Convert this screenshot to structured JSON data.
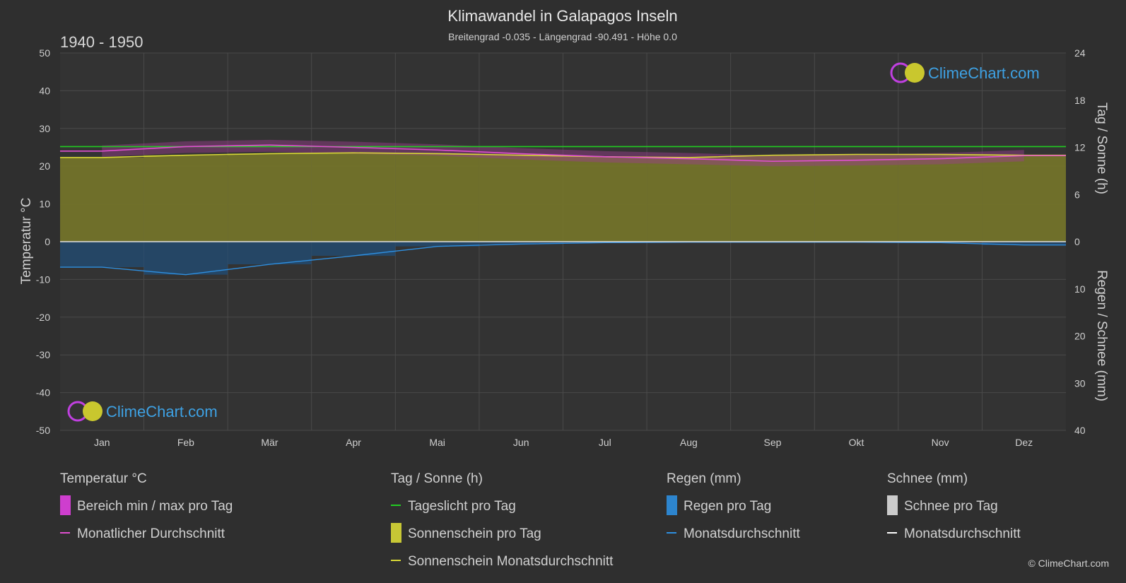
{
  "chart_data": {
    "type": "area",
    "title": "Klimawandel in Galapagos Inseln",
    "subtitle": "Breitengrad -0.035 - Längengrad -90.491 - Höhe 0.0",
    "period": "1940 - 1950",
    "months": [
      "Jan",
      "Feb",
      "Mär",
      "Apr",
      "Mai",
      "Jun",
      "Jul",
      "Aug",
      "Sep",
      "Okt",
      "Nov",
      "Dez"
    ],
    "y_left": {
      "label": "Temperatur °C",
      "min": -50,
      "max": 50,
      "ticks": [
        50,
        40,
        30,
        20,
        10,
        0,
        -10,
        -20,
        -30,
        -40,
        -50
      ]
    },
    "y_right_top": {
      "label": "Tag / Sonne (h)",
      "min": 0,
      "max": 24,
      "ticks": [
        24,
        18,
        12,
        6,
        0
      ]
    },
    "y_right_bottom": {
      "label": "Regen / Schnee (mm)",
      "min": 0,
      "max": 40,
      "ticks": [
        0,
        10,
        20,
        30,
        40
      ]
    },
    "series": [
      {
        "name": "Tageslicht pro Tag",
        "unit": "h",
        "color": "#22cc22",
        "values": [
          12.1,
          12.1,
          12.1,
          12.1,
          12.1,
          12.1,
          12.1,
          12.1,
          12.1,
          12.1,
          12.1,
          12.1
        ]
      },
      {
        "name": "Sonnenschein Monatsdurchschnitt",
        "unit": "h",
        "color": "#d8d836",
        "values": [
          10.7,
          11.0,
          11.2,
          11.3,
          11.2,
          11.0,
          10.8,
          10.7,
          11.0,
          11.1,
          11.1,
          11.0
        ]
      },
      {
        "name": "Monatlicher Durchschnitt",
        "unit": "°C",
        "color": "#e050d0",
        "values": [
          24.0,
          25.2,
          25.6,
          25.0,
          24.3,
          23.3,
          22.5,
          22.0,
          21.3,
          21.6,
          22.0,
          22.8
        ]
      },
      {
        "name": "Temperatur Bereich min",
        "unit": "°C",
        "values": [
          22.5,
          23.5,
          23.8,
          23.3,
          22.8,
          21.8,
          21.0,
          20.5,
          20.0,
          20.2,
          20.5,
          21.3
        ]
      },
      {
        "name": "Temperatur Bereich max",
        "unit": "°C",
        "values": [
          25.5,
          26.6,
          27.0,
          26.5,
          25.8,
          24.8,
          24.0,
          23.5,
          22.8,
          23.0,
          23.5,
          24.3
        ]
      },
      {
        "name": "Regen Monatsdurchschnitt",
        "unit": "mm",
        "color": "#2e8fe0",
        "values": [
          5.4,
          7.0,
          4.8,
          3.0,
          1.0,
          0.5,
          0.2,
          0.1,
          0.1,
          0.1,
          0.2,
          0.7
        ]
      },
      {
        "name": "Schnee Monatsdurchschnitt",
        "unit": "mm",
        "color": "#ffffff",
        "values": [
          0,
          0,
          0,
          0,
          0,
          0,
          0,
          0,
          0,
          0,
          0,
          0
        ]
      }
    ],
    "legend": {
      "groups": [
        {
          "title": "Temperatur °C",
          "items": [
            {
              "label": "Bereich min / max pro Tag",
              "swatch": "range",
              "color": "#e040e0"
            },
            {
              "label": "Monatlicher Durchschnitt",
              "swatch": "line",
              "color": "#e050d0"
            }
          ]
        },
        {
          "title": "Tag / Sonne (h)",
          "items": [
            {
              "label": "Tageslicht pro Tag",
              "swatch": "line",
              "color": "#22cc22"
            },
            {
              "label": "Sonnenschein pro Tag",
              "swatch": "bar",
              "color": "#d8d836"
            },
            {
              "label": "Sonnenschein Monatsdurchschnitt",
              "swatch": "line",
              "color": "#d8d836"
            }
          ]
        },
        {
          "title": "Regen (mm)",
          "items": [
            {
              "label": "Regen pro Tag",
              "swatch": "bar",
              "color": "#2e8fe0"
            },
            {
              "label": "Monatsdurchschnitt",
              "swatch": "line",
              "color": "#2e8fe0"
            }
          ]
        },
        {
          "title": "Schnee (mm)",
          "items": [
            {
              "label": "Schnee pro Tag",
              "swatch": "bar",
              "color": "#dddddd"
            },
            {
              "label": "Monatsdurchschnitt",
              "swatch": "line",
              "color": "#ffffff"
            }
          ]
        }
      ]
    },
    "grid": true
  },
  "branding": {
    "text": "ClimeChart.com",
    "copyright": "© ClimeChart.com"
  }
}
